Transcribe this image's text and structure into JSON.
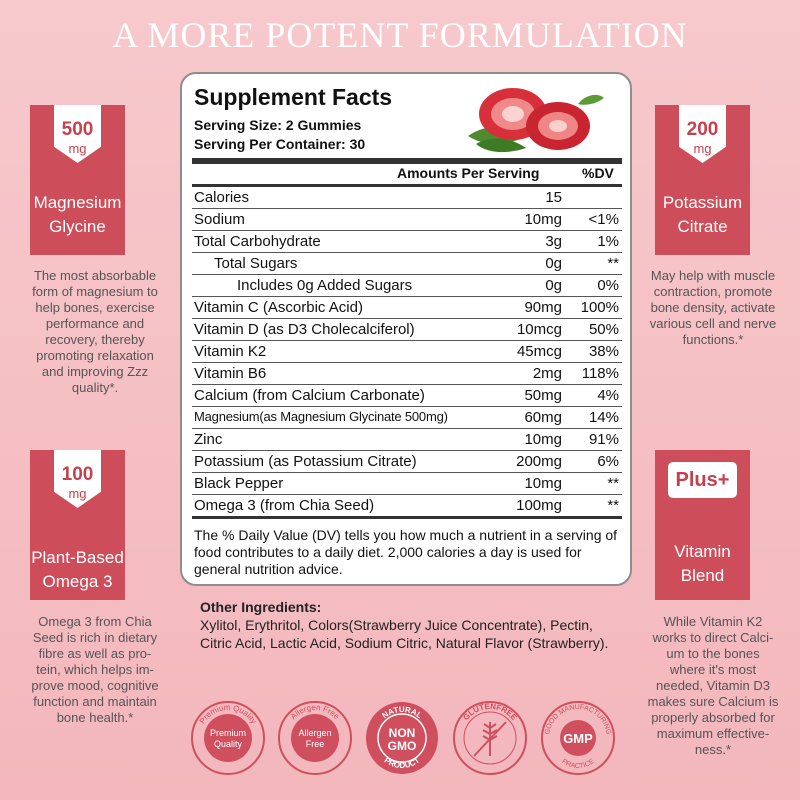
{
  "headline": "A MORE POTENT FORMULATION",
  "facts": {
    "title": "Supplement Facts",
    "serving_size": "Serving Size: 2 Gummies",
    "serving_per_container": "Serving Per Container: 30",
    "amount_header": "Amounts Per Serving",
    "dv_header": "%DV",
    "rows": [
      {
        "name": "Calories",
        "amount": "15",
        "dv": ""
      },
      {
        "name": "Sodium",
        "amount": "10mg",
        "dv": "<1%"
      },
      {
        "name": "Total Carbohydrate",
        "amount": "3g",
        "dv": "1%"
      },
      {
        "name": "Total Sugars",
        "amount": "0g",
        "dv": "**"
      },
      {
        "name": "Includes 0g Added Sugars",
        "amount": "0g",
        "dv": "0%"
      },
      {
        "name": "Vitamin C  (Ascorbic Acid)",
        "amount": "90mg",
        "dv": "100%"
      },
      {
        "name": "Vitamin D (as D3 Cholecalciferol)",
        "amount": "10mcg",
        "dv": "50%"
      },
      {
        "name": "Vitamin K2",
        "amount": "45mcg",
        "dv": "38%"
      },
      {
        "name": "Vitamin B6",
        "amount": "2mg",
        "dv": "118%"
      },
      {
        "name": "Calcium (from Calcium Carbonate)",
        "amount": "50mg",
        "dv": "4%"
      },
      {
        "name": "Magnesium(as Magnesium Glycinate 500mg)",
        "amount": "60mg",
        "dv": "14%"
      },
      {
        "name": "Zinc",
        "amount": "10mg",
        "dv": "91%"
      },
      {
        "name": "Potassium (as Potassium Citrate)",
        "amount": "200mg",
        "dv": "6%"
      },
      {
        "name": "Black Pepper",
        "amount": "10mg",
        "dv": "**"
      },
      {
        "name": "Omega 3 (from Chia Seed)",
        "amount": "100mg",
        "dv": "**"
      }
    ],
    "note": "The % Daily Value (DV) tells you how much a nutrient in a serving of food contributes to a daily diet. 2,000 calories a day is used for general nutrition advice."
  },
  "ingredients": {
    "title": "Other Ingredients:",
    "text": "Xylitol, Erythritol, Colors(Strawberry Juice Concentrate), Pectin, Citric Acid, Lactic Acid, Sodium Citric, Natural Flavor (Strawberry)."
  },
  "cards": {
    "magnesium": {
      "amount": "500",
      "unit": "mg",
      "label1": "Magnesium",
      "label2": "Glycine",
      "desc": [
        "The most absorbable",
        "form of magnesium to",
        "help bones, exercise",
        "performance and",
        "recovery, thereby",
        "promoting relaxation",
        "and improving Zzz",
        "quality*."
      ]
    },
    "potassium": {
      "amount": "200",
      "unit": "mg",
      "label1": "Potassium",
      "label2": "Citrate",
      "desc": [
        "May help with muscle",
        "contraction, promote",
        "bone density, activate",
        "various cell and nerve",
        "functions.*"
      ]
    },
    "omega": {
      "amount": "100",
      "unit": "mg",
      "label1": "Plant-Based",
      "label2": "Omega 3",
      "desc": [
        "Omega 3 from Chia",
        "Seed is rich in dietary",
        "fibre as well as pro-",
        "tein, which helps im-",
        "prove mood, cognitive",
        "function and maintain",
        "bone health.*"
      ]
    },
    "vitamin": {
      "amount": "Plus+",
      "label1": "Vitamin",
      "label2": "Blend",
      "desc": [
        "While Vitamin K2",
        "works to direct Calci-",
        "um to the bones",
        "where it's most",
        "needed, Vitamin D3",
        "makes sure Calcium is",
        "properly absorbed for",
        "maximum effective-",
        "ness.*"
      ]
    }
  },
  "badges": {
    "premium": {
      "ring": "Premium Quality",
      "line1": "Premium",
      "line2": "Quality"
    },
    "allergen": {
      "ring": "Allergen Free",
      "line1": "Allergen",
      "line2": "Free"
    },
    "gmo": {
      "top": "NATURAL",
      "line1": "NON",
      "line2": "GMO",
      "bottom": "PRODUCT"
    },
    "gluten": {
      "ring": "GLUTENFREE"
    },
    "gmp": {
      "top": "GOOD MANUFACTURING",
      "center": "GMP",
      "bottom": "PRACTICE"
    }
  },
  "colors": {
    "card": "#cd4e5a",
    "accent": "#c7404d",
    "background": "#f5c1c5",
    "badge": "#cf4f5e"
  }
}
